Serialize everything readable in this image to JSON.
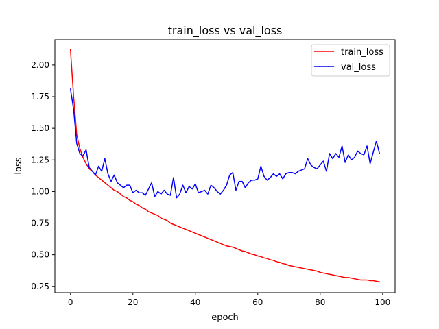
{
  "chart_data": {
    "type": "line",
    "title": "train_loss vs val_loss",
    "xlabel": "epoch",
    "ylabel": "loss",
    "xlim": [
      -5,
      104
    ],
    "ylim": [
      0.2,
      2.2
    ],
    "xticks": [
      0,
      20,
      40,
      60,
      80,
      100
    ],
    "yticks": [
      0.25,
      0.5,
      0.75,
      1.0,
      1.25,
      1.5,
      1.75,
      2.0
    ],
    "xtick_labels": [
      "0",
      "20",
      "40",
      "60",
      "80",
      "100"
    ],
    "ytick_labels": [
      "0.25",
      "0.50",
      "0.75",
      "1.00",
      "1.25",
      "1.50",
      "1.75",
      "2.00"
    ],
    "grid": false,
    "legend_position": "top-right",
    "series": [
      {
        "name": "train_loss",
        "color": "#ff0000",
        "x": [
          0,
          1,
          2,
          3,
          4,
          5,
          6,
          7,
          8,
          9,
          10,
          11,
          12,
          13,
          14,
          15,
          16,
          17,
          18,
          19,
          20,
          21,
          22,
          23,
          24,
          25,
          26,
          27,
          28,
          29,
          30,
          31,
          32,
          33,
          34,
          35,
          36,
          37,
          38,
          39,
          40,
          41,
          42,
          43,
          44,
          45,
          46,
          47,
          48,
          49,
          50,
          51,
          52,
          53,
          54,
          55,
          56,
          57,
          58,
          59,
          60,
          61,
          62,
          63,
          64,
          65,
          66,
          67,
          68,
          69,
          70,
          71,
          72,
          73,
          74,
          75,
          76,
          77,
          78,
          79,
          80,
          81,
          82,
          83,
          84,
          85,
          86,
          87,
          88,
          89,
          90,
          91,
          92,
          93,
          94,
          95,
          96,
          97,
          98,
          99
        ],
        "values": [
          2.12,
          1.75,
          1.45,
          1.34,
          1.27,
          1.22,
          1.18,
          1.16,
          1.13,
          1.11,
          1.09,
          1.07,
          1.05,
          1.03,
          1.01,
          1.0,
          0.98,
          0.96,
          0.95,
          0.93,
          0.92,
          0.9,
          0.89,
          0.87,
          0.86,
          0.84,
          0.83,
          0.82,
          0.81,
          0.79,
          0.78,
          0.77,
          0.75,
          0.74,
          0.73,
          0.72,
          0.71,
          0.7,
          0.69,
          0.68,
          0.67,
          0.66,
          0.65,
          0.64,
          0.63,
          0.62,
          0.61,
          0.6,
          0.59,
          0.58,
          0.57,
          0.565,
          0.56,
          0.55,
          0.54,
          0.53,
          0.525,
          0.515,
          0.505,
          0.5,
          0.49,
          0.485,
          0.475,
          0.47,
          0.46,
          0.455,
          0.445,
          0.44,
          0.43,
          0.425,
          0.415,
          0.41,
          0.405,
          0.4,
          0.395,
          0.39,
          0.385,
          0.38,
          0.375,
          0.37,
          0.36,
          0.355,
          0.35,
          0.345,
          0.34,
          0.335,
          0.33,
          0.325,
          0.32,
          0.32,
          0.315,
          0.31,
          0.305,
          0.3,
          0.3,
          0.3,
          0.295,
          0.295,
          0.29,
          0.285
        ]
      },
      {
        "name": "val_loss",
        "color": "#0000ff",
        "x": [
          0,
          1,
          2,
          3,
          4,
          5,
          6,
          7,
          8,
          9,
          10,
          11,
          12,
          13,
          14,
          15,
          16,
          17,
          18,
          19,
          20,
          21,
          22,
          23,
          24,
          25,
          26,
          27,
          28,
          29,
          30,
          31,
          32,
          33,
          34,
          35,
          36,
          37,
          38,
          39,
          40,
          41,
          42,
          43,
          44,
          45,
          46,
          47,
          48,
          49,
          50,
          51,
          52,
          53,
          54,
          55,
          56,
          57,
          58,
          59,
          60,
          61,
          62,
          63,
          64,
          65,
          66,
          67,
          68,
          69,
          70,
          71,
          72,
          73,
          74,
          75,
          76,
          77,
          78,
          79,
          80,
          81,
          82,
          83,
          84,
          85,
          86,
          87,
          88,
          89,
          90,
          91,
          92,
          93,
          94,
          95,
          96,
          97,
          98,
          99
        ],
        "values": [
          1.81,
          1.65,
          1.38,
          1.3,
          1.28,
          1.33,
          1.19,
          1.16,
          1.13,
          1.2,
          1.16,
          1.26,
          1.14,
          1.08,
          1.13,
          1.07,
          1.05,
          1.03,
          1.05,
          1.05,
          0.99,
          1.01,
          0.99,
          0.99,
          0.97,
          1.02,
          1.07,
          0.96,
          1.0,
          0.98,
          1.01,
          0.98,
          0.97,
          1.11,
          0.95,
          0.98,
          1.05,
          0.99,
          1.04,
          1.02,
          1.06,
          0.99,
          1.0,
          1.01,
          0.98,
          1.05,
          1.03,
          1.0,
          0.98,
          1.01,
          1.05,
          1.13,
          1.15,
          1.01,
          1.08,
          1.08,
          1.03,
          1.07,
          1.09,
          1.09,
          1.1,
          1.2,
          1.12,
          1.09,
          1.11,
          1.14,
          1.12,
          1.14,
          1.1,
          1.14,
          1.15,
          1.15,
          1.14,
          1.16,
          1.17,
          1.18,
          1.26,
          1.21,
          1.19,
          1.18,
          1.21,
          1.24,
          1.16,
          1.3,
          1.26,
          1.3,
          1.27,
          1.36,
          1.23,
          1.29,
          1.25,
          1.27,
          1.32,
          1.3,
          1.29,
          1.36,
          1.22,
          1.31,
          1.4,
          1.3
        ]
      }
    ]
  }
}
